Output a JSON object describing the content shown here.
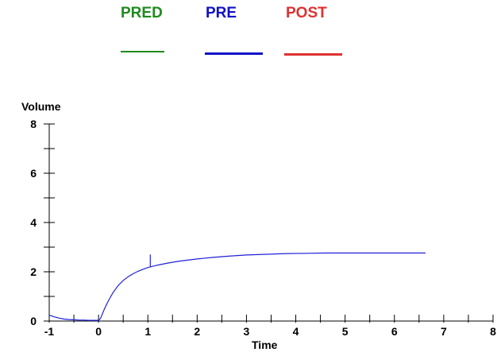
{
  "chart_data": {
    "type": "line",
    "legend": [
      {
        "label": "PRED",
        "color": "#1e8a1e"
      },
      {
        "label": "PRE",
        "color": "#1010c8"
      },
      {
        "label": "POST",
        "color": "#e03030"
      }
    ],
    "legend_placement": "top",
    "xlabel": "Time",
    "ylabel": "Volume",
    "xlim": [
      -1,
      8
    ],
    "ylim": [
      0,
      8
    ],
    "x_ticks": [
      -1,
      0,
      1,
      2,
      3,
      4,
      5,
      6,
      7,
      8
    ],
    "y_ticks": [
      0,
      2,
      4,
      6,
      8
    ],
    "grid": false,
    "series": [
      {
        "name": "PRE",
        "color": "#2020d8",
        "x": [
          -1.0,
          -0.9,
          -0.8,
          -0.7,
          -0.6,
          -0.5,
          -0.4,
          -0.3,
          -0.2,
          -0.1,
          0.0,
          0.02,
          0.05,
          0.08,
          0.1,
          0.15,
          0.2,
          0.25,
          0.3,
          0.4,
          0.5,
          0.6,
          0.7,
          0.8,
          0.9,
          1.0,
          1.2,
          1.4,
          1.6,
          1.8,
          2.0,
          2.3,
          2.6,
          3.0,
          3.4,
          3.8,
          4.2,
          4.6,
          5.0,
          5.5,
          6.0,
          6.5,
          6.63
        ],
        "y": [
          0.24,
          0.17,
          0.12,
          0.08,
          0.06,
          0.05,
          0.04,
          0.04,
          0.03,
          0.03,
          0.03,
          0.06,
          0.15,
          0.3,
          0.4,
          0.62,
          0.82,
          1.0,
          1.17,
          1.45,
          1.65,
          1.8,
          1.92,
          2.02,
          2.1,
          2.17,
          2.27,
          2.35,
          2.42,
          2.47,
          2.52,
          2.58,
          2.63,
          2.68,
          2.71,
          2.74,
          2.75,
          2.76,
          2.76,
          2.76,
          2.76,
          2.76,
          2.76
        ]
      },
      {
        "name": "PRE",
        "color": "#2020d8",
        "x": [
          1.05,
          1.05
        ],
        "y": [
          2.2,
          2.7
        ]
      }
    ]
  }
}
